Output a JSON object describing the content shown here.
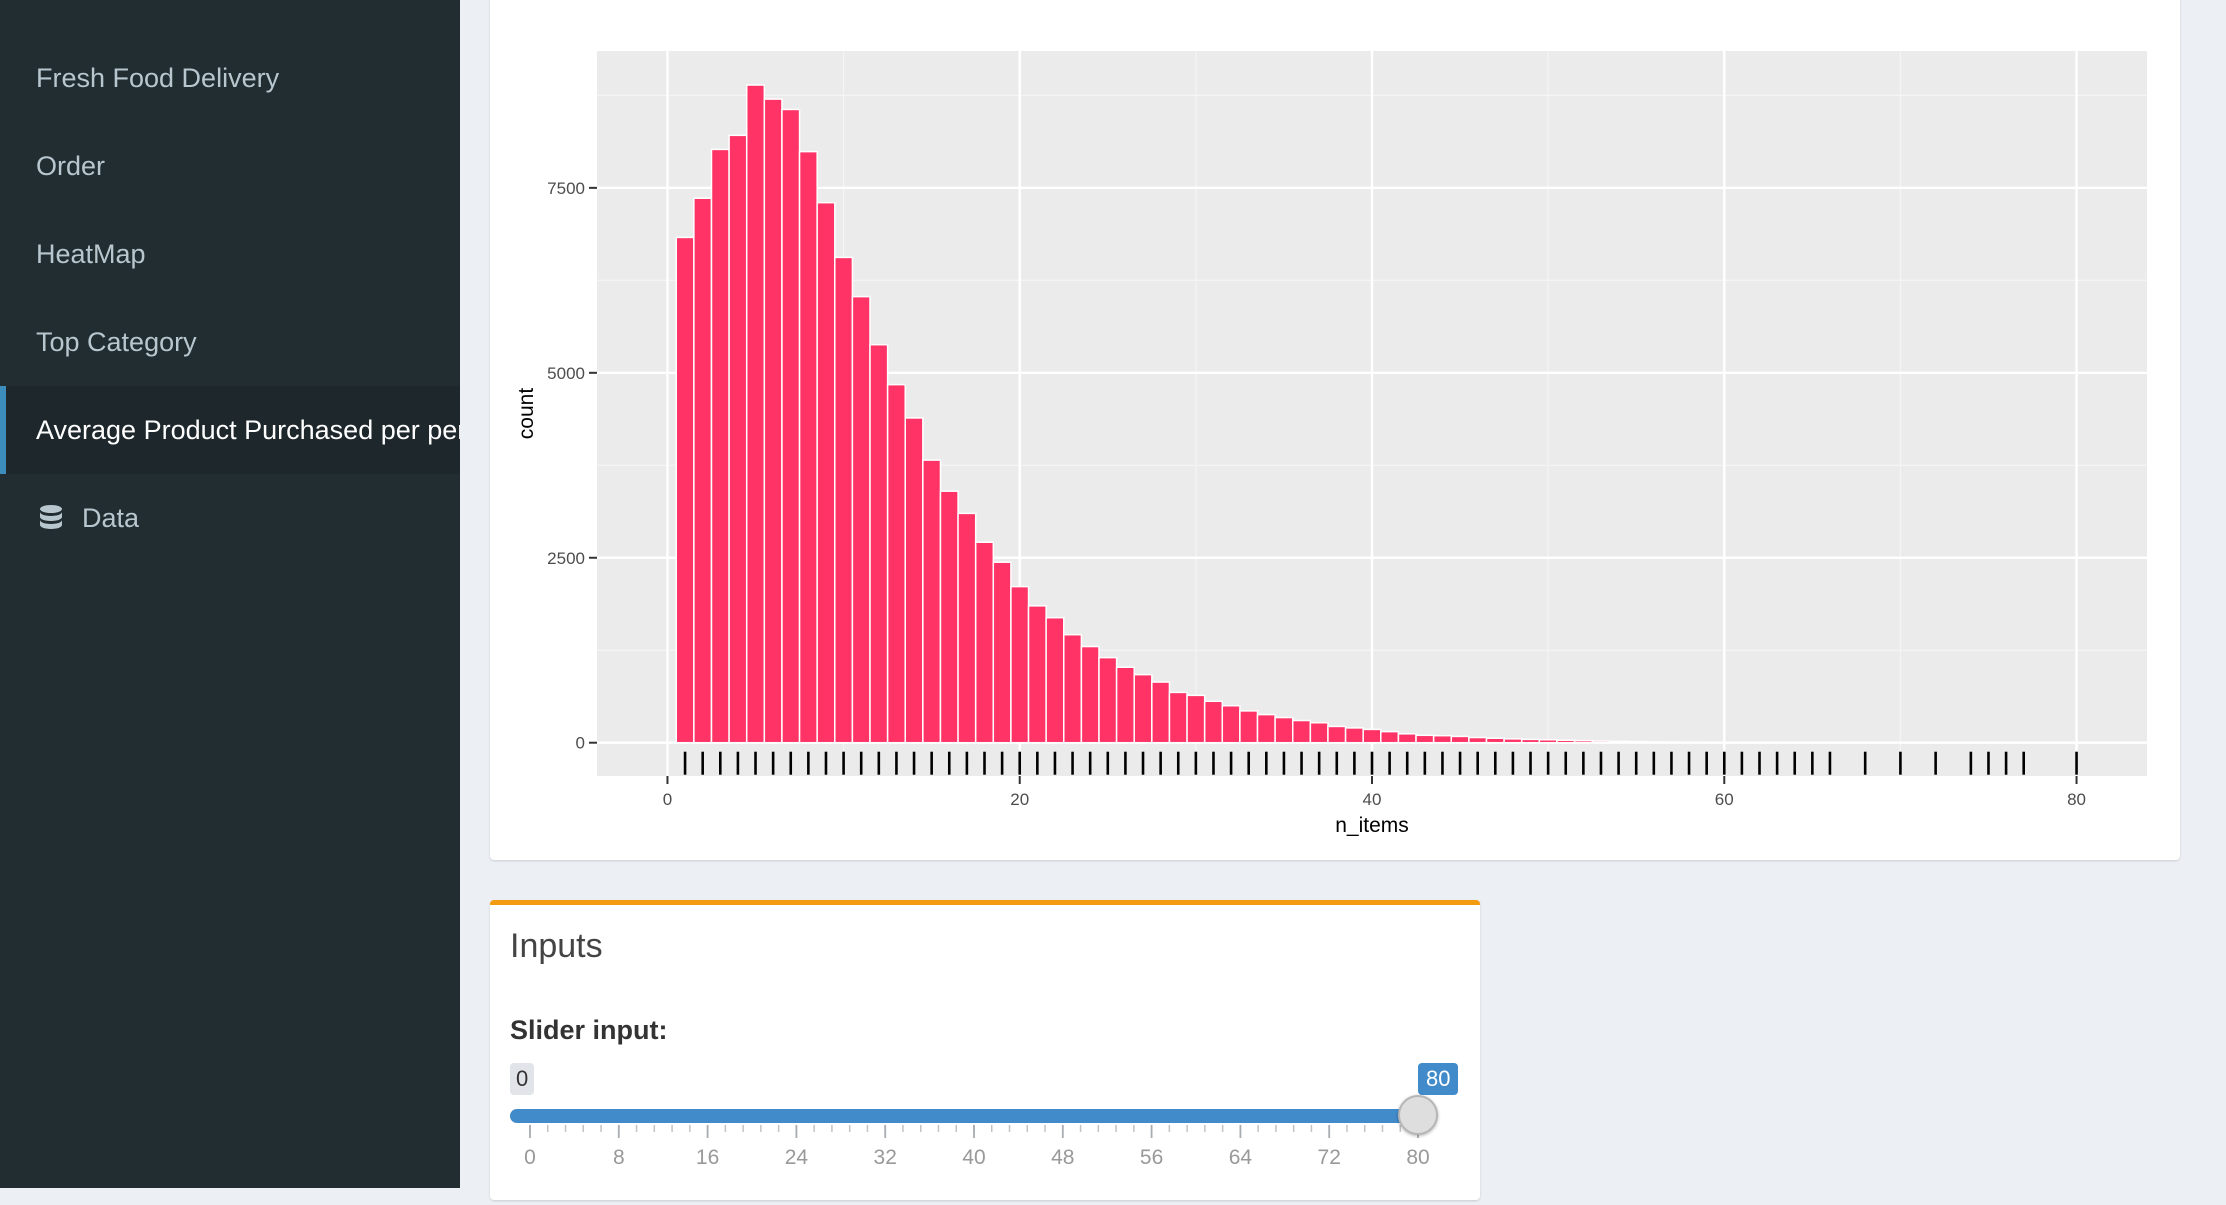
{
  "sidebar": {
    "items": [
      {
        "label": "Fresh Food Delivery",
        "active": false
      },
      {
        "label": "Order",
        "active": false
      },
      {
        "label": "HeatMap",
        "active": false
      },
      {
        "label": "Top Category",
        "active": false
      },
      {
        "label": "Average Product Purchased per pers",
        "active": true
      },
      {
        "label": "Data",
        "active": false,
        "icon": "database-icon"
      }
    ]
  },
  "chart_data": {
    "type": "bar",
    "title": "",
    "xlabel": "n_items",
    "ylabel": "count",
    "xlim": [
      -4,
      84
    ],
    "ylim": [
      -450,
      9350
    ],
    "x_ticks": [
      0,
      20,
      40,
      60,
      80
    ],
    "y_ticks": [
      0,
      2500,
      5000,
      7500
    ],
    "bar_color": "#ff3366",
    "panel_color": "#ebebeb",
    "grid": true,
    "rug": true,
    "x": [
      1,
      2,
      3,
      4,
      5,
      6,
      7,
      8,
      9,
      10,
      11,
      12,
      13,
      14,
      15,
      16,
      17,
      18,
      19,
      20,
      21,
      22,
      23,
      24,
      25,
      26,
      27,
      28,
      29,
      30,
      31,
      32,
      33,
      34,
      35,
      36,
      37,
      38,
      39,
      40,
      41,
      42,
      43,
      44,
      45,
      46,
      47,
      48,
      49,
      50,
      51,
      52,
      53,
      54,
      55,
      56,
      57,
      58,
      59,
      60
    ],
    "values": [
      6830,
      7360,
      8020,
      8210,
      8890,
      8700,
      8560,
      7990,
      7300,
      6560,
      6030,
      5380,
      4840,
      4390,
      3820,
      3400,
      3100,
      2710,
      2440,
      2110,
      1850,
      1690,
      1460,
      1300,
      1150,
      1020,
      920,
      820,
      680,
      640,
      560,
      500,
      430,
      380,
      340,
      300,
      270,
      220,
      200,
      180,
      150,
      120,
      100,
      95,
      85,
      70,
      60,
      52,
      45,
      40,
      33,
      28,
      22,
      18,
      15,
      12,
      9,
      7,
      5,
      4
    ]
  },
  "inputs_box": {
    "title": "Inputs",
    "slider_label": "Slider input:",
    "slider": {
      "min": 0,
      "max": 80,
      "value_from": 0,
      "value_to": 80,
      "from_label": "0",
      "to_label": "80",
      "ticks": [
        "0",
        "8",
        "16",
        "24",
        "32",
        "40",
        "48",
        "56",
        "64",
        "72",
        "80"
      ]
    },
    "accent": "#f39c12",
    "slider_color": "#428bca"
  }
}
